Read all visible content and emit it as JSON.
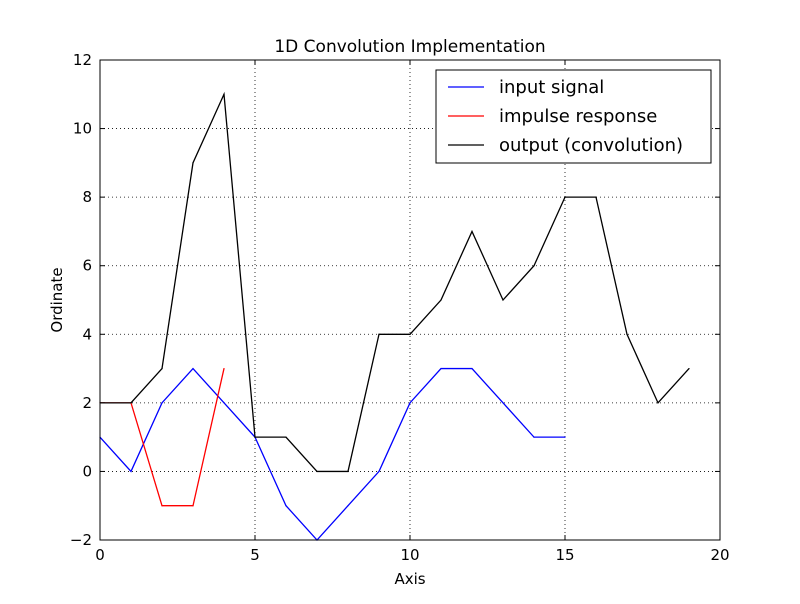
{
  "chart_data": {
    "type": "line",
    "title": "1D Convolution Implementation",
    "xlabel": "Axis",
    "ylabel": "Ordinate",
    "xlim": [
      0,
      20
    ],
    "ylim": [
      -2,
      12
    ],
    "xticks": [
      0,
      5,
      10,
      15,
      20
    ],
    "yticks": [
      -2,
      0,
      2,
      4,
      6,
      8,
      10,
      12
    ],
    "grid": true,
    "legend_position": "top-right",
    "series": [
      {
        "name": "input signal",
        "color": "#0000ff",
        "x": [
          0,
          1,
          2,
          3,
          4,
          5,
          6,
          7,
          8,
          9,
          10,
          11,
          12,
          13,
          14,
          15
        ],
        "values": [
          1,
          0,
          2,
          3,
          2,
          1,
          -1,
          -2,
          -1,
          0,
          2,
          3,
          3,
          2,
          1,
          1
        ]
      },
      {
        "name": "impulse response",
        "color": "#ff0000",
        "x": [
          0,
          1,
          2,
          3,
          4
        ],
        "values": [
          2,
          2,
          -1,
          -1,
          3
        ]
      },
      {
        "name": "output (convolution)",
        "color": "#000000",
        "x": [
          0,
          1,
          2,
          3,
          4,
          5,
          6,
          7,
          8,
          9,
          10,
          11,
          12,
          13,
          14,
          15,
          16,
          17,
          18,
          19
        ],
        "values": [
          2,
          2,
          3,
          9,
          11,
          1,
          1,
          0,
          0,
          4,
          4,
          5,
          7,
          5,
          6,
          8,
          8,
          4,
          2,
          3
        ]
      }
    ]
  }
}
